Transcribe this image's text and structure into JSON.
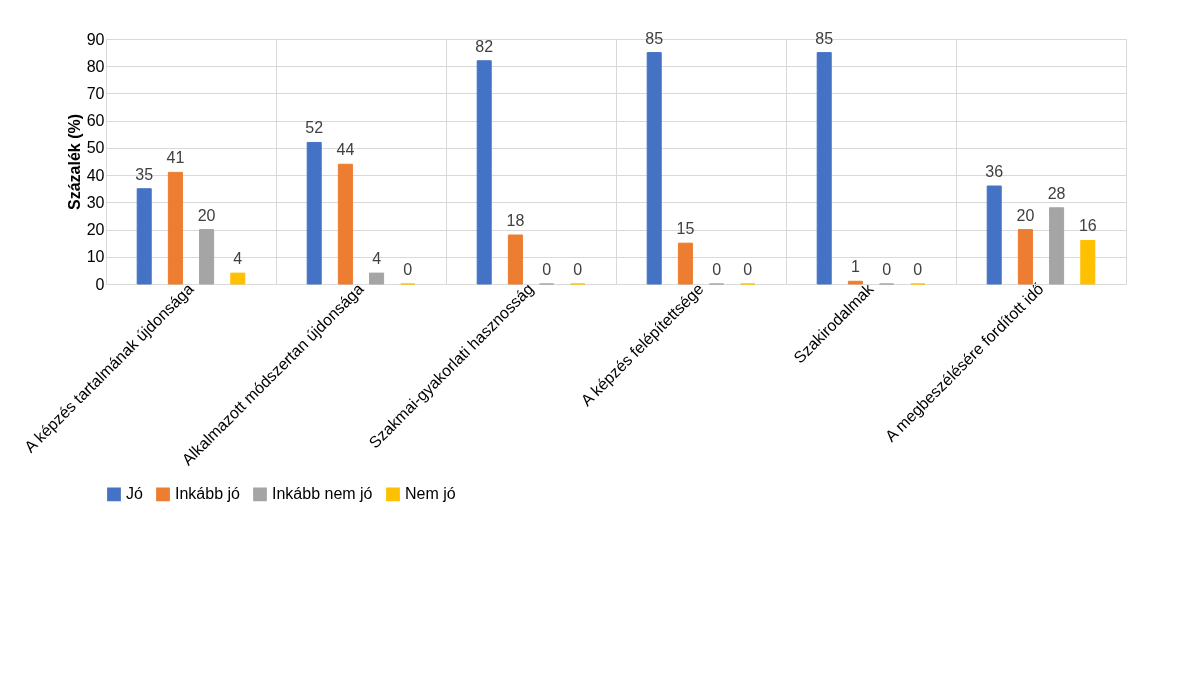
{
  "chart_data": {
    "type": "bar",
    "ylabel": "Százalék (%)",
    "categories": [
      "A képzés tartalmának újdonsága",
      "Alkalmazott módszertan újdonsága",
      "Szakmai-gyakorlati hasznosság",
      "A képzés felépítettsége",
      "Szakirodalmak",
      "A megbeszélésére fordított idő"
    ],
    "series": [
      {
        "name": "Jó",
        "color": "#4472c4",
        "values": [
          35,
          52,
          82,
          85,
          85,
          36
        ]
      },
      {
        "name": "Inkább jó",
        "color": "#ed7d31",
        "values": [
          41,
          44,
          18,
          15,
          1,
          20
        ]
      },
      {
        "name": "Inkább nem jó",
        "color": "#a5a5a5",
        "values": [
          20,
          4,
          0,
          0,
          0,
          28
        ]
      },
      {
        "name": "Nem jó",
        "color": "#ffc000",
        "values": [
          4,
          0,
          0,
          0,
          0,
          16
        ]
      }
    ],
    "ylim": [
      0,
      90
    ],
    "yticks": [
      0,
      10,
      20,
      30,
      40,
      50,
      60,
      70,
      80,
      90
    ],
    "grid": true,
    "legend": "bottom",
    "data_labels": true
  }
}
